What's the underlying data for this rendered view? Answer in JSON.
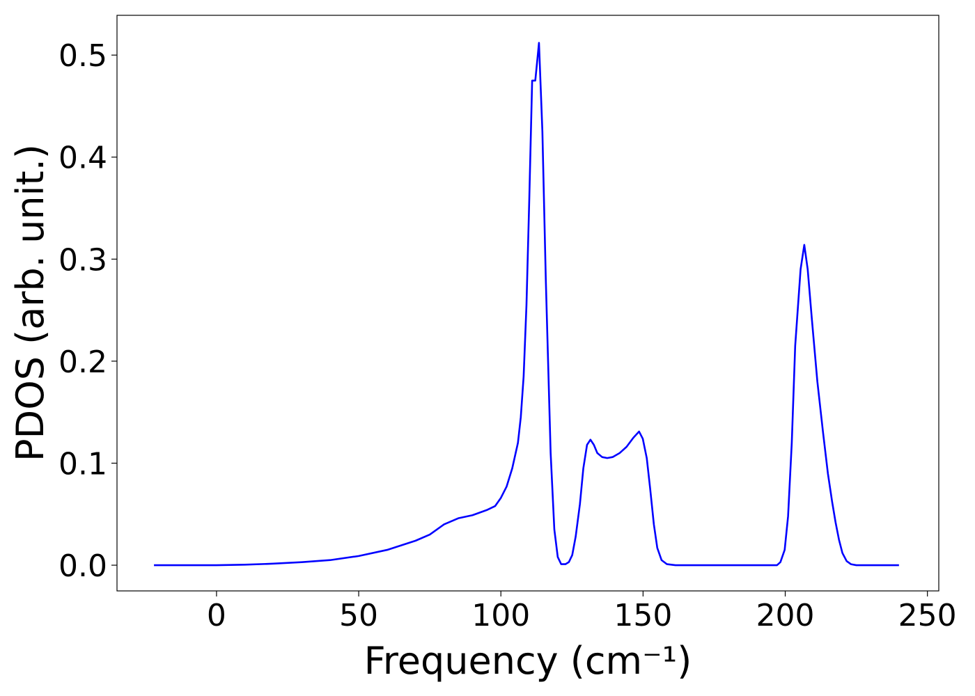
{
  "chart_data": {
    "type": "line",
    "xlabel": "Frequency (cm⁻¹)",
    "ylabel": "PDOS (arb. unit.)",
    "x": [
      -22,
      0,
      10,
      20,
      30,
      40,
      50,
      60,
      70,
      75,
      80,
      85,
      90,
      95,
      98,
      100,
      102,
      104,
      106,
      107,
      108,
      109,
      110,
      111,
      112.1,
      113.4,
      114.6,
      115.8,
      117.5,
      118.8,
      120,
      121.2,
      122.7,
      123.9,
      125.1,
      126.3,
      127.8,
      129,
      130.3,
      131.5,
      132.7,
      133.9,
      135.6,
      137.4,
      139.3,
      141.8,
      144.2,
      146.6,
      148.6,
      149.9,
      151.3,
      152.5,
      153.8,
      155,
      156.5,
      158.4,
      161.4,
      180,
      197.1,
      198.3,
      199.8,
      201,
      202.3,
      203.5,
      205.4,
      206.7,
      207.9,
      209.4,
      211.3,
      213.3,
      215,
      216.5,
      217.7,
      218.9,
      220.1,
      221.6,
      223.1,
      225,
      240
    ],
    "series": [
      {
        "color": "#0000ff",
        "values": [
          0,
          0,
          0.0005,
          0.0015,
          0.003,
          0.005,
          0.009,
          0.015,
          0.024,
          0.03,
          0.04,
          0.046,
          0.049,
          0.054,
          0.058,
          0.066,
          0.077,
          0.095,
          0.12,
          0.145,
          0.185,
          0.255,
          0.36,
          0.475,
          0.475,
          0.512,
          0.425,
          0.28,
          0.11,
          0.035,
          0.008,
          0.001,
          0.001,
          0.003,
          0.01,
          0.028,
          0.06,
          0.095,
          0.118,
          0.123,
          0.118,
          0.11,
          0.106,
          0.105,
          0.106,
          0.11,
          0.116,
          0.125,
          0.131,
          0.124,
          0.105,
          0.075,
          0.04,
          0.017,
          0.005,
          0.001,
          0,
          0,
          0,
          0.003,
          0.015,
          0.048,
          0.12,
          0.215,
          0.29,
          0.314,
          0.29,
          0.24,
          0.18,
          0.13,
          0.09,
          0.062,
          0.042,
          0.025,
          0.012,
          0.004,
          0.001,
          0,
          0
        ]
      }
    ],
    "xlim": [
      -35,
      254
    ],
    "ylim": [
      -0.0252,
      0.539
    ],
    "xticks": [
      0,
      50,
      100,
      150,
      200,
      250
    ],
    "yticks": [
      {
        "value": 0,
        "label": "0.0"
      },
      0.1,
      0.2,
      0.3,
      0.4,
      0.5
    ]
  }
}
